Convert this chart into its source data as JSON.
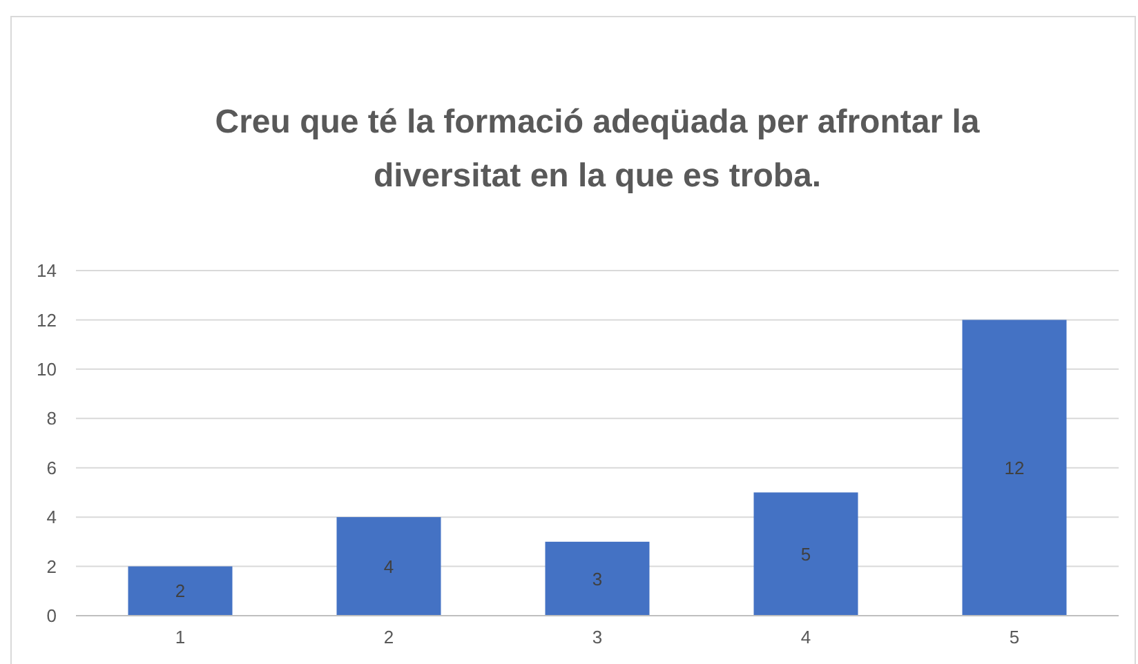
{
  "chart_data": {
    "type": "bar",
    "title": "Creu que té la formació adeqüada per afrontar la diversitat en la que es troba.",
    "categories": [
      "1",
      "2",
      "3",
      "4",
      "5"
    ],
    "values": [
      2,
      4,
      3,
      5,
      12
    ],
    "color": "#4472c4",
    "ylim": [
      0,
      14
    ],
    "yticks": [
      0,
      2,
      4,
      6,
      8,
      10,
      12,
      14
    ],
    "grid": "y",
    "data_labels": true
  }
}
